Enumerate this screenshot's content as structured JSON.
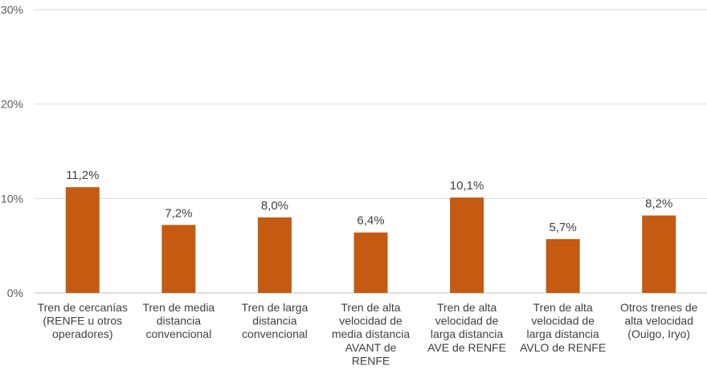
{
  "chart_data": {
    "type": "bar",
    "categories": [
      "Tren de cercanías (RENFE u otros operadores)",
      "Tren de media distancia convencional",
      "Tren de larga distancia convencional",
      "Tren de alta velocidad de media distancia AVANT de RENFE",
      "Tren de alta velocidad de larga distancia AVE de RENFE",
      "Tren de alta velocidad de larga distancia AVLO de RENFE",
      "Otros trenes de alta velocidad (Ouigo, Iryo)"
    ],
    "category_lines": [
      [
        "Tren de cercanías",
        "(RENFE u otros",
        "operadores)"
      ],
      [
        "Tren de media",
        "distancia",
        "convencional"
      ],
      [
        "Tren de larga",
        "distancia",
        "convencional"
      ],
      [
        "Tren de alta",
        "velocidad de",
        "media distancia",
        "AVANT de",
        "RENFE"
      ],
      [
        "Tren de alta",
        "velocidad de",
        "larga distancia",
        "AVE de RENFE"
      ],
      [
        "Tren de alta",
        "velocidad de",
        "larga distancia",
        "AVLO de RENFE"
      ],
      [
        "Otros trenes de",
        "alta velocidad",
        "(Ouigo, Iryo)"
      ]
    ],
    "values": [
      11.2,
      7.2,
      8.0,
      6.4,
      10.1,
      5.7,
      8.2
    ],
    "data_labels": [
      "11,2%",
      "7,2%",
      "8,0%",
      "6,4%",
      "10,1%",
      "5,7%",
      "8,2%"
    ],
    "yticks": [
      0,
      10,
      20,
      30
    ],
    "ytick_labels": [
      "0%",
      "10%",
      "20%",
      "30%"
    ],
    "ylim": [
      0,
      30
    ],
    "grid": true,
    "bar_color": "#C55A11",
    "grid_color": "#D9D9D9",
    "title": "",
    "xlabel": "",
    "ylabel": ""
  }
}
